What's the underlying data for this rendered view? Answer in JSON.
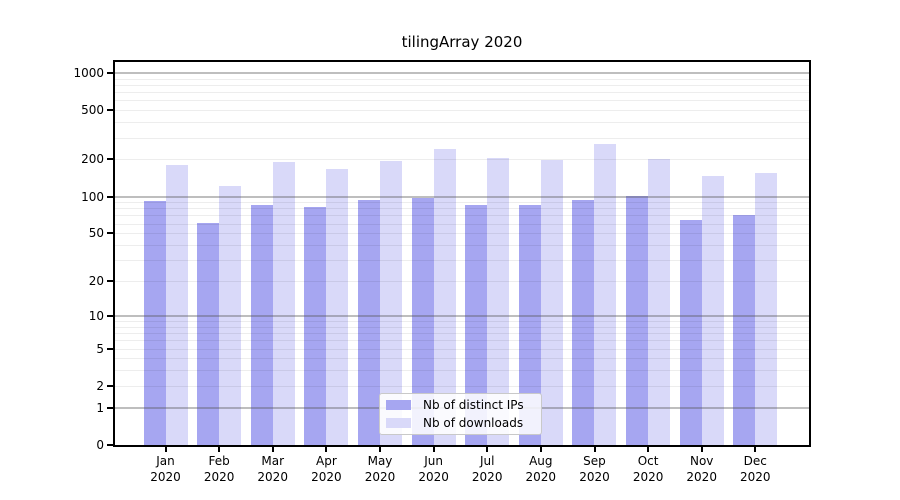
{
  "chart_data": {
    "type": "bar",
    "title": "tilingArray 2020",
    "categories": [
      "Jan 2020",
      "Feb 2020",
      "Mar 2020",
      "Apr 2020",
      "May 2020",
      "Jun 2020",
      "Jul 2020",
      "Aug 2020",
      "Sep 2020",
      "Oct 2020",
      "Nov 2020",
      "Dec 2020"
    ],
    "series": [
      {
        "name": "Nb of distinct IPs",
        "color": "#a6a6f1",
        "values": [
          92,
          61,
          86,
          82,
          93,
          97,
          86,
          86,
          93,
          101,
          64,
          71
        ]
      },
      {
        "name": "Nb of downloads",
        "color": "#d9d9f9",
        "values": [
          181,
          122,
          192,
          168,
          195,
          245,
          205,
          197,
          269,
          200,
          148,
          154
        ]
      }
    ],
    "y_axis": {
      "scale": "log10(value+1)",
      "ticks": [
        0,
        1,
        2,
        5,
        10,
        20,
        50,
        100,
        200,
        500,
        1000
      ],
      "major_ticks": [
        1,
        10,
        100,
        1000
      ],
      "minor_ticks": [
        3,
        4,
        6,
        7,
        8,
        9,
        30,
        40,
        60,
        70,
        80,
        90,
        300,
        400,
        600,
        700,
        800,
        900
      ],
      "ylim": [
        0,
        1240
      ]
    },
    "x_axis": {
      "label_lines": 2
    },
    "grid": true,
    "legend_position": "bottom-center",
    "colors": {
      "distinct_ips": "#a6a6f1",
      "downloads": "#d9d9f9",
      "major_grid": "#bcbcbc",
      "minor_grid": "#ededed",
      "axis": "#000000"
    }
  }
}
